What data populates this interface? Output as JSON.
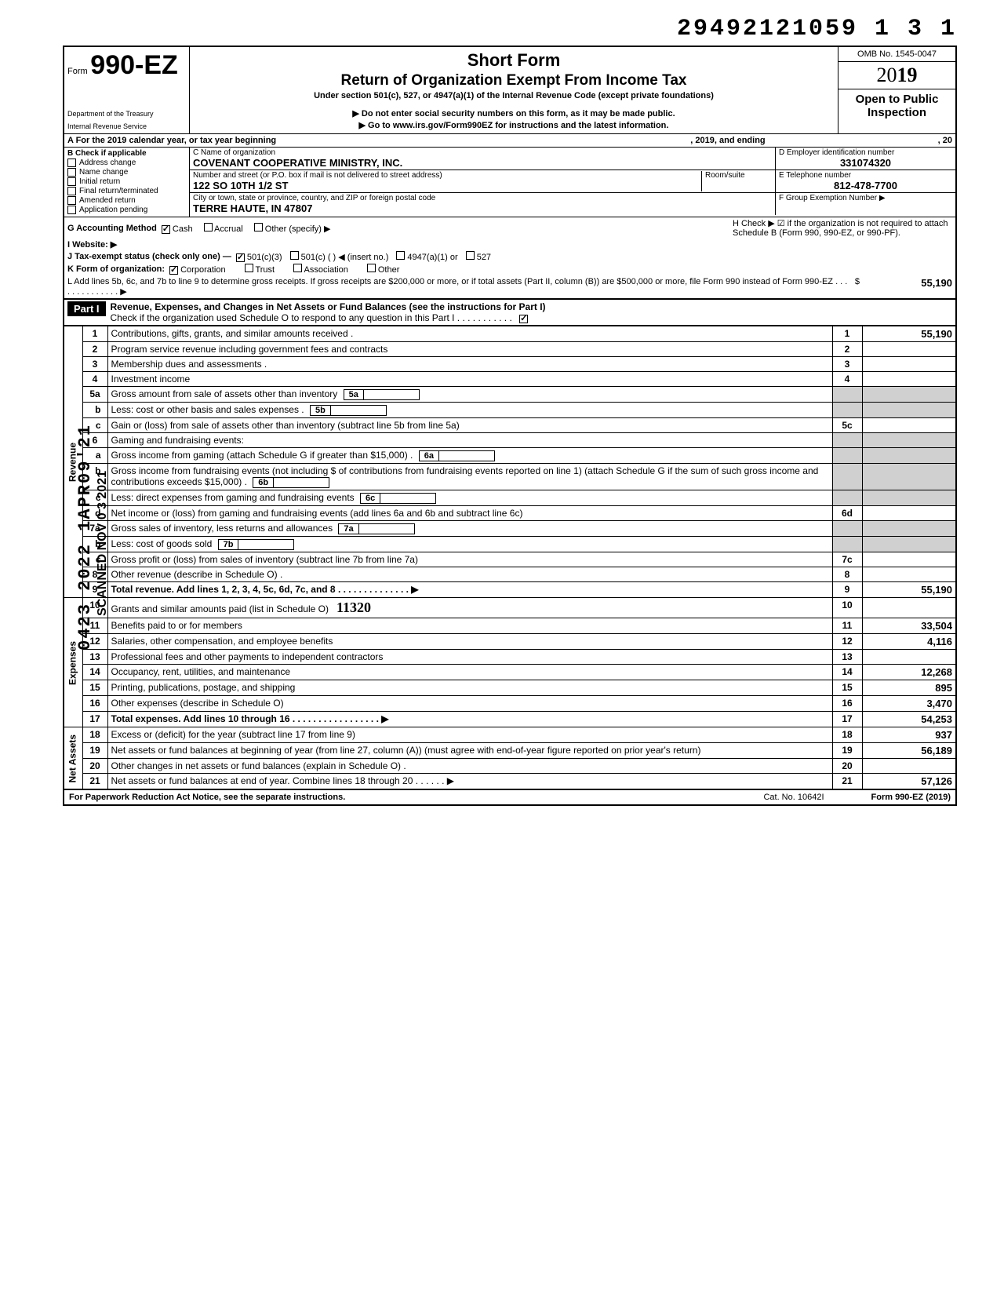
{
  "top_number": "29492121059 1 3  1",
  "omb": "OMB No. 1545-0047",
  "form_prefix": "Form",
  "form_number": "990-EZ",
  "dept1": "Department of the Treasury",
  "dept2": "Internal Revenue Service",
  "title1": "Short Form",
  "title2": "Return of Organization Exempt From Income Tax",
  "subtitle": "Under section 501(c), 527, or 4947(a)(1) of the Internal Revenue Code (except private foundations)",
  "warn1": "▶ Do not enter social security numbers on this form, as it may be made public.",
  "warn2": "▶ Go to www.irs.gov/Form990EZ for instructions and the latest information.",
  "year_prefix": "20",
  "year_bold": "19",
  "open_public": "Open to Public Inspection",
  "row_a": "A For the 2019 calendar year, or tax year beginning",
  "row_a_mid": ", 2019, and ending",
  "row_a_end": ", 20",
  "b_label": "B Check if applicable",
  "b_items": [
    "Address change",
    "Name change",
    "Initial return",
    "Final return/terminated",
    "Amended return",
    "Application pending"
  ],
  "c_label": "C  Name of organization",
  "c_value": "COVENANT COOPERATIVE MINISTRY, INC.",
  "addr_label": "Number and street (or P.O. box if mail is not delivered to street address)",
  "room_label": "Room/suite",
  "addr_value": "122 SO 10TH 1/2 ST",
  "city_label": "City or town, state or province, country, and ZIP or foreign postal code",
  "city_value": "TERRE HAUTE, IN 47807",
  "d_label": "D Employer identification number",
  "d_value": "331074320",
  "e_label": "E Telephone number",
  "e_value": "812-478-7700",
  "f_label": "F Group Exemption Number ▶",
  "g_label": "G Accounting Method",
  "g_opts": [
    "Cash",
    "Accrual",
    "Other (specify) ▶"
  ],
  "g_checked": 0,
  "h_label": "H Check ▶ ☑ if the organization is not required to attach Schedule B (Form 990, 990-EZ, or 990-PF).",
  "i_label": "I  Website: ▶",
  "j_label": "J Tax-exempt status (check only one) —",
  "j_opts": [
    "501(c)(3)",
    "501(c) (       ) ◀ (insert no.)",
    "4947(a)(1) or",
    "527"
  ],
  "k_label": "K Form of organization:",
  "k_opts": [
    "Corporation",
    "Trust",
    "Association",
    "Other"
  ],
  "k_checked": 0,
  "l_text": "L Add lines 5b, 6c, and 7b to line 9 to determine gross receipts. If gross receipts are $200,000 or more, or if total assets (Part II, column (B)) are $500,000 or more, file Form 990 instead of Form 990-EZ .  .  .  .  .  .  .  .  .  .  .  .  .  .  ▶",
  "l_amount": "55,190",
  "part1_label": "Part I",
  "part1_title": "Revenue, Expenses, and Changes in Net Assets or Fund Balances (see the instructions for Part I)",
  "part1_check": "Check if the organization used Schedule O to respond to any question in this Part I .  .  .  .  .  .  .  .  .  .  .",
  "side_labels": {
    "rev": "Revenue",
    "exp": "Expenses",
    "net": "Net Assets"
  },
  "lines": [
    {
      "n": "1",
      "desc": "Contributions, gifts, grants, and similar amounts received .",
      "box": "1",
      "amt": "55,190"
    },
    {
      "n": "2",
      "desc": "Program service revenue including government fees and contracts",
      "box": "2",
      "amt": ""
    },
    {
      "n": "3",
      "desc": "Membership dues and assessments .",
      "box": "3",
      "amt": ""
    },
    {
      "n": "4",
      "desc": "Investment income",
      "box": "4",
      "amt": ""
    },
    {
      "n": "5a",
      "desc": "Gross amount from sale of assets other than inventory",
      "inner": "5a",
      "shade": true
    },
    {
      "n": "b",
      "desc": "Less: cost or other basis and sales expenses .",
      "inner": "5b",
      "shade": true
    },
    {
      "n": "c",
      "desc": "Gain or (loss) from sale of assets other than inventory (subtract line 5b from line 5a)",
      "box": "5c",
      "amt": ""
    },
    {
      "n": "6",
      "desc": "Gaming and fundraising events:",
      "shade": true,
      "noboxcol": true
    },
    {
      "n": "a",
      "desc": "Gross income from gaming (attach Schedule G if greater than $15,000) .",
      "inner": "6a",
      "shade": true
    },
    {
      "n": "b",
      "desc": "Gross income from fundraising events (not including  $                  of contributions from fundraising events reported on line 1) (attach Schedule G if the sum of such gross income and contributions exceeds $15,000) .",
      "inner": "6b",
      "shade": true
    },
    {
      "n": "c",
      "desc": "Less: direct expenses from gaming and fundraising events",
      "inner": "6c",
      "shade": true
    },
    {
      "n": "d",
      "desc": "Net income or (loss) from gaming and fundraising events (add lines 6a and 6b and subtract line 6c)",
      "box": "6d",
      "amt": ""
    },
    {
      "n": "7a",
      "desc": "Gross sales of inventory, less returns and allowances",
      "inner": "7a",
      "shade": true
    },
    {
      "n": "b",
      "desc": "Less: cost of goods sold",
      "inner": "7b",
      "shade": true
    },
    {
      "n": "c",
      "desc": "Gross profit or (loss) from sales of inventory (subtract line 7b from line 7a)",
      "box": "7c",
      "amt": ""
    },
    {
      "n": "8",
      "desc": "Other revenue (describe in Schedule O) .",
      "box": "8",
      "amt": ""
    },
    {
      "n": "9",
      "desc": "Total revenue. Add lines 1, 2, 3, 4, 5c, 6d, 7c, and 8  .  .  .  .  .  .  .  .  .  .  .  .  .  .  ▶",
      "box": "9",
      "amt": "55,190",
      "bold": true
    },
    {
      "n": "10",
      "desc": "Grants and similar amounts paid (list in Schedule O)",
      "box": "10",
      "amt": "",
      "hand": "11320"
    },
    {
      "n": "11",
      "desc": "Benefits paid to or for members",
      "box": "11",
      "amt": "33,504"
    },
    {
      "n": "12",
      "desc": "Salaries, other compensation, and employee benefits",
      "box": "12",
      "amt": "4,116"
    },
    {
      "n": "13",
      "desc": "Professional fees and other payments to independent contractors",
      "box": "13",
      "amt": ""
    },
    {
      "n": "14",
      "desc": "Occupancy, rent, utilities, and maintenance",
      "box": "14",
      "amt": "12,268"
    },
    {
      "n": "15",
      "desc": "Printing, publications, postage, and shipping",
      "box": "15",
      "amt": "895"
    },
    {
      "n": "16",
      "desc": "Other expenses (describe in Schedule O)",
      "box": "16",
      "amt": "3,470"
    },
    {
      "n": "17",
      "desc": "Total expenses. Add lines 10 through 16  .  .  .  .  .  .  .  .  .  .  .  .  .  .  .  .  .  ▶",
      "box": "17",
      "amt": "54,253",
      "bold": true
    },
    {
      "n": "18",
      "desc": "Excess or (deficit) for the year (subtract line 17 from line 9)",
      "box": "18",
      "amt": "937"
    },
    {
      "n": "19",
      "desc": "Net assets or fund balances at beginning of year (from line 27, column (A)) (must agree with end-of-year figure reported on prior year's return)",
      "box": "19",
      "amt": "56,189"
    },
    {
      "n": "20",
      "desc": "Other changes in net assets or fund balances (explain in Schedule O) .",
      "box": "20",
      "amt": ""
    },
    {
      "n": "21",
      "desc": "Net assets or fund balances at end of year. Combine lines 18 through 20  .  .  .  .  .  .  ▶",
      "box": "21",
      "amt": "57,126"
    }
  ],
  "footer_left": "For Paperwork Reduction Act Notice, see the separate instructions.",
  "footer_cat": "Cat. No. 10642I",
  "footer_form": "Form 990-EZ (2019)",
  "stamp_date": "0423 2022 1APR09'21",
  "scan_stamp": "SCANNED NOV 0 3 2021"
}
